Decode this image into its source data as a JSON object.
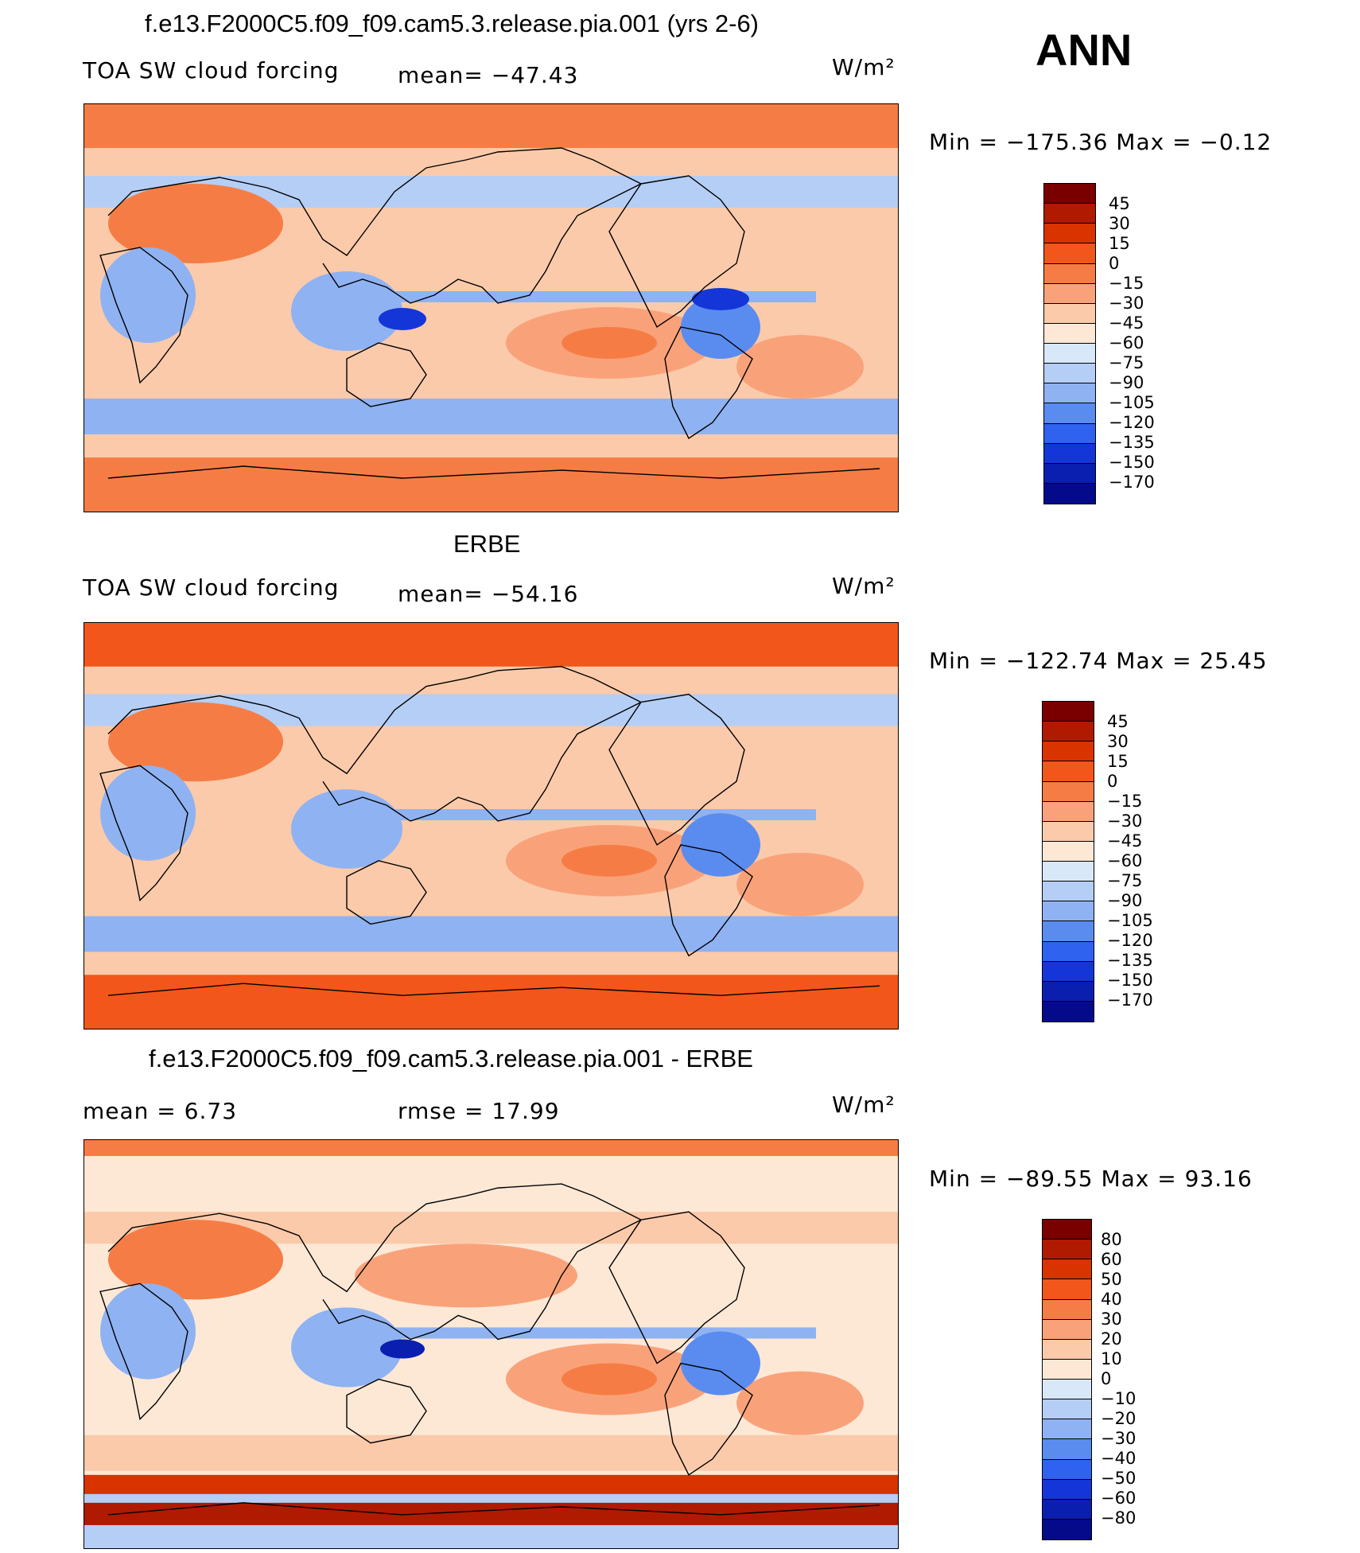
{
  "season": "ANN",
  "panels": [
    {
      "id": "model",
      "title": "f.e13.F2000C5.f09_f09.cam5.3.release.pia.001 (yrs 2-6)",
      "left_label": "TOA SW cloud forcing",
      "center_label": "mean= −47.43",
      "units": "W/m²",
      "minmax": "Min  =  −175.36  Max  =    −0.12",
      "levels": [
        "45",
        "30",
        "15",
        "0",
        "−15",
        "−30",
        "−45",
        "−60",
        "−75",
        "−90",
        "−105",
        "−120",
        "−135",
        "−150",
        "−170"
      ],
      "colors": [
        "#7a0000",
        "#b01a00",
        "#d93300",
        "#f2561a",
        "#f57d45",
        "#f9a27a",
        "#fbcaaa",
        "#fde8d6",
        "#d8e8f8",
        "#b5cef5",
        "#8fb2f2",
        "#5a8cf0",
        "#2f62ee",
        "#1436d8",
        "#0a1fb0",
        "#040a8a"
      ]
    },
    {
      "id": "obs",
      "title": "ERBE",
      "left_label": "TOA SW cloud forcing",
      "center_label": "mean= −54.16",
      "units": "W/m²",
      "minmax": "Min  =  −122.74  Max  =    25.45",
      "levels": [
        "45",
        "30",
        "15",
        "0",
        "−15",
        "−30",
        "−45",
        "−60",
        "−75",
        "−90",
        "−105",
        "−120",
        "−135",
        "−150",
        "−170"
      ],
      "colors": [
        "#7a0000",
        "#b01a00",
        "#d93300",
        "#f2561a",
        "#f57d45",
        "#f9a27a",
        "#fbcaaa",
        "#fde8d6",
        "#d8e8f8",
        "#b5cef5",
        "#8fb2f2",
        "#5a8cf0",
        "#2f62ee",
        "#1436d8",
        "#0a1fb0",
        "#040a8a"
      ]
    },
    {
      "id": "diff",
      "title": "f.e13.F2000C5.f09_f09.cam5.3.release.pia.001 - ERBE",
      "left_label": "mean  =     6.73",
      "center_label": "rmse  =    17.99",
      "units": "W/m²",
      "minmax": "Min  =  −89.55  Max  =    93.16",
      "levels": [
        "80",
        "60",
        "50",
        "40",
        "30",
        "20",
        "10",
        "0",
        "−10",
        "−20",
        "−30",
        "−40",
        "−50",
        "−60",
        "−80"
      ],
      "colors": [
        "#7a0000",
        "#b01a00",
        "#d93300",
        "#f2561a",
        "#f57d45",
        "#f9a27a",
        "#fbcaaa",
        "#fde8d6",
        "#d8e8f8",
        "#b5cef5",
        "#8fb2f2",
        "#5a8cf0",
        "#2f62ee",
        "#1436d8",
        "#0a1fb0",
        "#040a8a"
      ]
    }
  ]
}
